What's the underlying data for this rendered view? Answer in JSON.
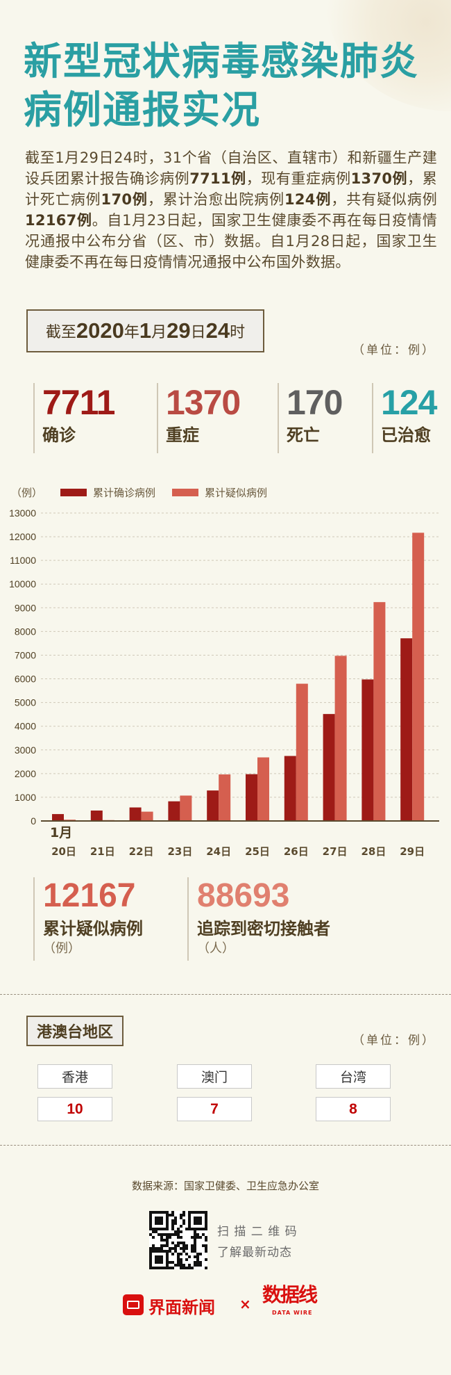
{
  "header": {
    "title_line1": "新型冠状病毒感染肺炎",
    "title_line2": "病例通报实况"
  },
  "intro": {
    "segments": [
      {
        "text": "截至1月29日24时，31个省（自治区、直辖市）和新疆生产建设兵团累计报告确诊病例",
        "bold": false
      },
      {
        "text": "7711例",
        "bold": true
      },
      {
        "text": "，现有重症病例",
        "bold": false
      },
      {
        "text": "1370例",
        "bold": true
      },
      {
        "text": "，累计死亡病例",
        "bold": false
      },
      {
        "text": "170例",
        "bold": true
      },
      {
        "text": "，累计治愈出院病例",
        "bold": false
      },
      {
        "text": "124例",
        "bold": true
      },
      {
        "text": "，共有疑似病例",
        "bold": false
      },
      {
        "text": "12167例",
        "bold": true
      },
      {
        "text": "。自1月23日起，国家卫生健康委不再在每日疫情情况通报中公布分省（区、市）数据。自1月28日起，国家卫生健康委不再在每日疫情情况通报中公布国外数据。",
        "bold": false
      }
    ]
  },
  "as_of": {
    "prefix": "截至",
    "year": "2020",
    "year_unit": "年",
    "month": "1",
    "month_unit": "月",
    "day": "29",
    "day_unit": "日",
    "hour": "24",
    "hour_unit": "时"
  },
  "unit_label": "（单位：例）",
  "stats": [
    {
      "value": "7711",
      "label": "确诊",
      "color": "#9e1b17"
    },
    {
      "value": "1370",
      "label": "重症",
      "color": "#b94b43"
    },
    {
      "value": "170",
      "label": "死亡",
      "color": "#5f5f5f"
    },
    {
      "value": "124",
      "label": "已治愈",
      "color": "#27a0a6"
    }
  ],
  "chart_data": {
    "type": "bar",
    "ylabel": "（例）",
    "categories": [
      "20日",
      "21日",
      "22日",
      "23日",
      "24日",
      "25日",
      "26日",
      "27日",
      "28日",
      "29日"
    ],
    "x_group_label": "1月",
    "series": [
      {
        "name": "累计确诊病例",
        "color": "#9e1b17",
        "values": [
          291,
          440,
          571,
          830,
          1287,
          1975,
          2744,
          4515,
          5974,
          7711
        ]
      },
      {
        "name": "累计疑似病例",
        "color": "#d55f4f",
        "values": [
          54,
          37,
          393,
          1072,
          1965,
          2684,
          5794,
          6973,
          9239,
          12167
        ]
      }
    ],
    "ylim": [
      0,
      13000
    ],
    "yticks": [
      0,
      1000,
      2000,
      3000,
      4000,
      5000,
      6000,
      7000,
      8000,
      9000,
      10000,
      11000,
      12000,
      13000
    ],
    "grid": true,
    "legend": "top"
  },
  "extra_stats": [
    {
      "value": "12167",
      "label": "累计疑似病例",
      "unit": "（例）",
      "color": "#d55f4f"
    },
    {
      "value": "88693",
      "label": "追踪到密切接触者",
      "unit": "（人）",
      "color": "#e0806f"
    }
  ],
  "regions": {
    "title": "港澳台地区",
    "unit_label": "（单位：例）",
    "items": [
      {
        "name": "香港",
        "value": "10"
      },
      {
        "name": "澳门",
        "value": "7"
      },
      {
        "name": "台湾",
        "value": "8"
      }
    ]
  },
  "footer": {
    "source": "数据来源：国家卫健委、卫生应急办公室",
    "qr_line1": "扫 描 二 维 码",
    "qr_line2": "了解最新动态",
    "brand1": "界面新闻",
    "times": "×",
    "brand2": "数据线",
    "brand2_sub": "DATA WIRE"
  }
}
